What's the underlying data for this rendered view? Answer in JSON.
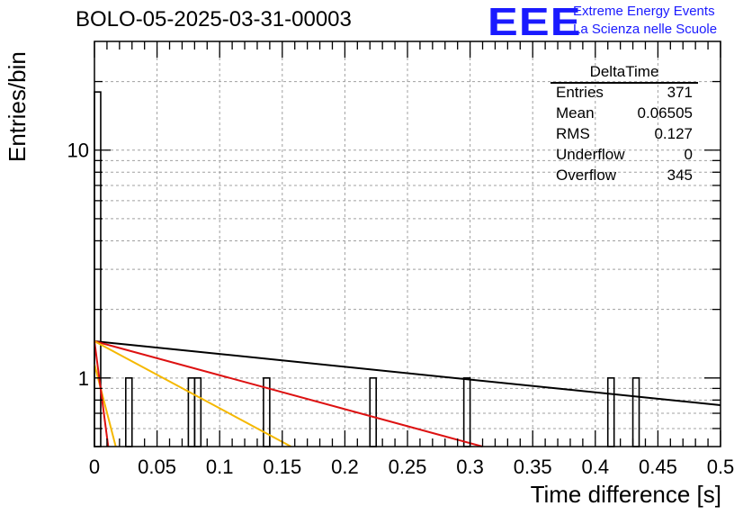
{
  "title": "BOLO-05-2025-03-31-00003",
  "logo": {
    "mark": "EEE",
    "line1": "Extreme Energy Events",
    "line2": "La Scienza nelle Scuole",
    "color": "#1a1aff"
  },
  "stats": {
    "name": "DeltaTime",
    "rows": [
      {
        "key": "Entries",
        "value": "371"
      },
      {
        "key": "Mean",
        "value": "0.06505"
      },
      {
        "key": "RMS",
        "value": "0.127"
      },
      {
        "key": "Underflow",
        "value": "0"
      },
      {
        "key": "Overflow",
        "value": "345"
      }
    ]
  },
  "chart_data": {
    "type": "bar",
    "title": "BOLO-05-2025-03-31-00003",
    "xlabel": "Time difference [s]",
    "ylabel": "Entries/bin",
    "xlim": [
      0,
      0.5
    ],
    "ylim": [
      0.5,
      30
    ],
    "yscale": "log",
    "grid": true,
    "bin_width": 0.005,
    "x_ticks": [
      "0",
      "0.05",
      "0.1",
      "0.15",
      "0.2",
      "0.25",
      "0.3",
      "0.35",
      "0.4",
      "0.45",
      "0.5"
    ],
    "y_ticks": [
      "1",
      "10"
    ],
    "bins": [
      {
        "x": 0.0,
        "value": 18
      },
      {
        "x": 0.025,
        "value": 1
      },
      {
        "x": 0.075,
        "value": 1
      },
      {
        "x": 0.08,
        "value": 1
      },
      {
        "x": 0.135,
        "value": 1
      },
      {
        "x": 0.22,
        "value": 1
      },
      {
        "x": 0.295,
        "value": 1
      },
      {
        "x": 0.41,
        "value": 1
      },
      {
        "x": 0.43,
        "value": 1
      }
    ],
    "lines": [
      {
        "color": "#000000",
        "points": [
          [
            0,
            1.45
          ],
          [
            0.5,
            0.76
          ]
        ]
      },
      {
        "color": "#dd1111",
        "points": [
          [
            0,
            1.45
          ],
          [
            0.31,
            0.5
          ]
        ]
      },
      {
        "color": "#f5b800",
        "points": [
          [
            0,
            1.45
          ],
          [
            0.157,
            0.5
          ]
        ]
      },
      {
        "color": "#f5b800",
        "points": [
          [
            0,
            1.15
          ],
          [
            0.017,
            0.5
          ]
        ]
      },
      {
        "color": "#dd1111",
        "points": [
          [
            0,
            1.45
          ],
          [
            0.011,
            0.5
          ]
        ]
      }
    ]
  }
}
